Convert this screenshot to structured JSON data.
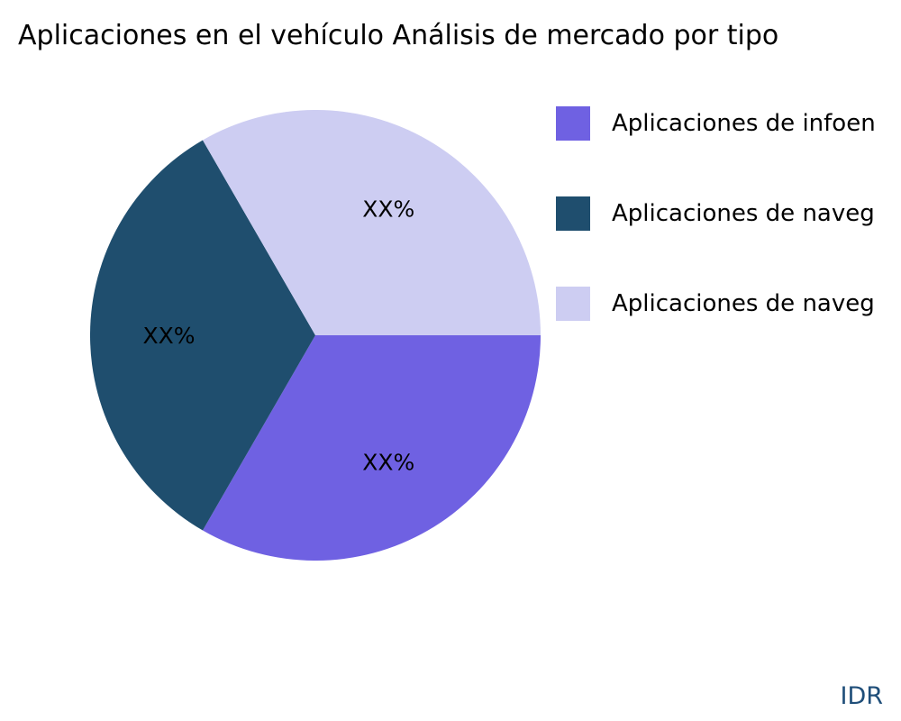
{
  "chart_data": {
    "type": "pie",
    "title": "Aplicaciones en el vehículo Análisis de mercado por tipo",
    "values": [
      33.33,
      33.33,
      33.33
    ],
    "value_labels": [
      "XX%",
      "XX%",
      "XX%"
    ],
    "legend": [
      {
        "label": "Aplicaciones de infoen",
        "color": "#6f61e2"
      },
      {
        "label": "Aplicaciones de naveg",
        "color": "#1f4e6e"
      },
      {
        "label": "Aplicaciones de naveg",
        "color": "#cdcdf2"
      }
    ],
    "start_angle_deg": 0,
    "direction": "clockwise",
    "legend_position": "right",
    "slice_label_color": "#000000",
    "background": "#ffffff"
  },
  "footer": {
    "brand": "IDR",
    "brand_color": "#1f4e79"
  }
}
